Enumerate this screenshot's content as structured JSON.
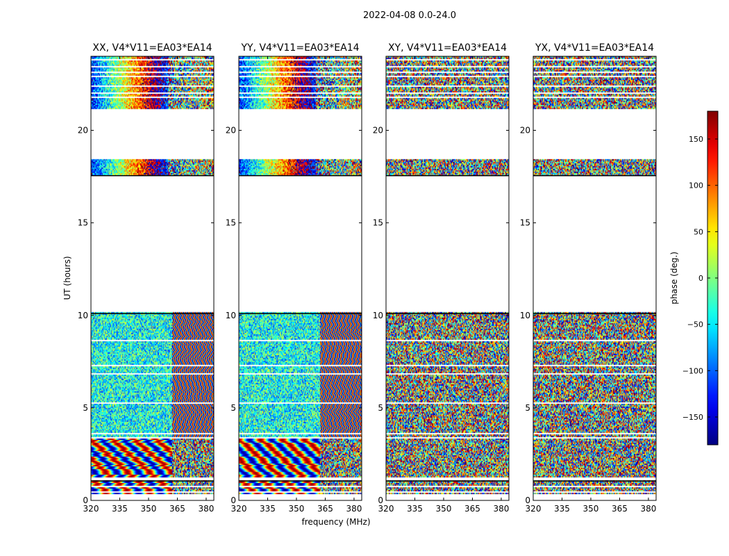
{
  "figure": {
    "suptitle": "2022-04-08 0.0-24.0",
    "xlabel": "frequency (MHz)",
    "ylabel": "UT (hours)"
  },
  "colorbar": {
    "label": "phase (deg.)",
    "range": [
      -180,
      180
    ],
    "ticks": [
      150,
      100,
      50,
      0,
      -50,
      -100,
      -150
    ],
    "tick_labels": [
      "150",
      "100",
      "50",
      "0",
      "−50",
      "−100",
      "−150"
    ],
    "colormap": "jet"
  },
  "chart_data": [
    {
      "type": "heatmap",
      "title": "XX, V4*V11=EA03*EA14",
      "pol": "XX",
      "x_ticks": [
        320,
        335,
        350,
        365,
        380
      ],
      "y_ticks": [
        0,
        5,
        10,
        15,
        20
      ],
      "xlim": [
        320,
        384
      ],
      "ylim": [
        0,
        24
      ],
      "zlim": [
        -180,
        180
      ]
    },
    {
      "type": "heatmap",
      "title": "YY, V4*V11=EA03*EA14",
      "pol": "YY",
      "x_ticks": [
        320,
        335,
        350,
        365,
        380
      ],
      "y_ticks": [
        0,
        5,
        10,
        15,
        20
      ],
      "xlim": [
        320,
        384
      ],
      "ylim": [
        0,
        24
      ],
      "zlim": [
        -180,
        180
      ]
    },
    {
      "type": "heatmap",
      "title": "XY, V4*V11=EA03*EA14",
      "pol": "XY",
      "x_ticks": [
        320,
        335,
        350,
        365,
        380
      ],
      "y_ticks": [
        0,
        5,
        10,
        15,
        20
      ],
      "xlim": [
        320,
        384
      ],
      "ylim": [
        0,
        24
      ],
      "zlim": [
        -180,
        180
      ]
    },
    {
      "type": "heatmap",
      "title": "YX, V4*V11=EA03*EA14",
      "pol": "YX",
      "x_ticks": [
        320,
        335,
        350,
        365,
        380
      ],
      "y_ticks": [
        0,
        5,
        10,
        15,
        20
      ],
      "xlim": [
        320,
        384
      ],
      "ylim": [
        0,
        24
      ],
      "zlim": [
        -180,
        180
      ]
    }
  ]
}
